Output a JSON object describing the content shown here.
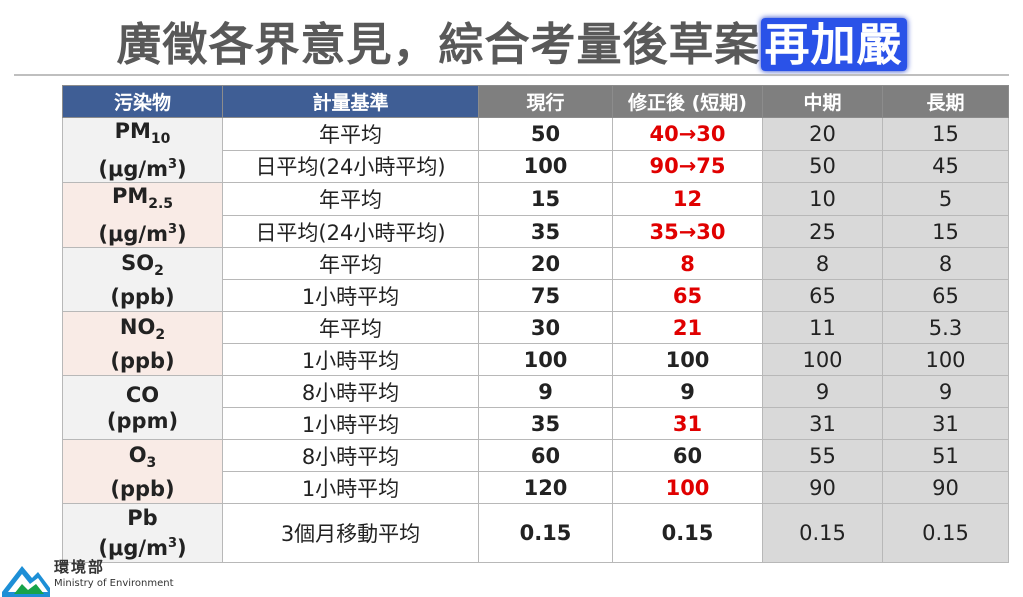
{
  "title": {
    "main": "廣徵各界意見，綜合考量後草案",
    "highlight": "再加嚴"
  },
  "table": {
    "headers": [
      "污染物",
      "計量基準",
      "現行",
      "修正後 (短期)",
      "中期",
      "長期"
    ],
    "groups": [
      {
        "name": "PM",
        "sub": "10",
        "unit_pre": "(μg/m",
        "unit_sup": "3",
        "unit_post": ")",
        "rows": [
          {
            "basis": "年平均",
            "current": "50",
            "revised": "40→30",
            "revised_changed": true,
            "mid": "20",
            "long": "15"
          },
          {
            "basis": "日平均(24小時平均)",
            "current": "100",
            "revised": "90→75",
            "revised_changed": true,
            "mid": "50",
            "long": "45"
          }
        ]
      },
      {
        "name": "PM",
        "sub": "2.5",
        "unit_pre": "(μg/m",
        "unit_sup": "3",
        "unit_post": ")",
        "rows": [
          {
            "basis": "年平均",
            "current": "15",
            "revised": "12",
            "revised_changed": true,
            "mid": "10",
            "long": "5"
          },
          {
            "basis": "日平均(24小時平均)",
            "current": "35",
            "revised": "35→30",
            "revised_changed": true,
            "mid": "25",
            "long": "15"
          }
        ]
      },
      {
        "name": "SO",
        "sub": "2",
        "unit_pre": "(ppb)",
        "unit_sup": "",
        "unit_post": "",
        "rows": [
          {
            "basis": "年平均",
            "current": "20",
            "revised": "8",
            "revised_changed": true,
            "mid": "8",
            "long": "8"
          },
          {
            "basis": "1小時平均",
            "current": "75",
            "revised": "65",
            "revised_changed": true,
            "mid": "65",
            "long": "65"
          }
        ]
      },
      {
        "name": "NO",
        "sub": "2",
        "unit_pre": "(ppb)",
        "unit_sup": "",
        "unit_post": "",
        "rows": [
          {
            "basis": "年平均",
            "current": "30",
            "revised": "21",
            "revised_changed": true,
            "mid": "11",
            "long": "5.3"
          },
          {
            "basis": "1小時平均",
            "current": "100",
            "revised": "100",
            "revised_changed": false,
            "mid": "100",
            "long": "100"
          }
        ]
      },
      {
        "name": "CO",
        "sub": "",
        "unit_pre": "(ppm)",
        "unit_sup": "",
        "unit_post": "",
        "rows": [
          {
            "basis": "8小時平均",
            "current": "9",
            "revised": "9",
            "revised_changed": false,
            "mid": "9",
            "long": "9"
          },
          {
            "basis": "1小時平均",
            "current": "35",
            "revised": "31",
            "revised_changed": true,
            "mid": "31",
            "long": "31"
          }
        ]
      },
      {
        "name": "O",
        "sub": "3",
        "unit_pre": "(ppb)",
        "unit_sup": "",
        "unit_post": "",
        "rows": [
          {
            "basis": "8小時平均",
            "current": "60",
            "revised": "60",
            "revised_changed": false,
            "mid": "55",
            "long": "51"
          },
          {
            "basis": "1小時平均",
            "current": "120",
            "revised": "100",
            "revised_changed": true,
            "mid": "90",
            "long": "90"
          }
        ]
      },
      {
        "name": "Pb",
        "sub": "",
        "unit_pre": "(μg/m",
        "unit_sup": "3",
        "unit_post": ")",
        "rows": [
          {
            "basis": "3個月移動平均",
            "current": "0.15",
            "revised": "0.15",
            "revised_changed": false,
            "mid": "0.15",
            "long": "0.15"
          }
        ]
      }
    ]
  },
  "footer": {
    "ministry_zh": "環境部",
    "ministry_en": "Ministry of Environment"
  },
  "colors": {
    "header_blue": "#3f5e95",
    "header_gray": "#7f7f7f",
    "revised_red": "#e00000",
    "highlight_blue": "#2a52e8"
  }
}
